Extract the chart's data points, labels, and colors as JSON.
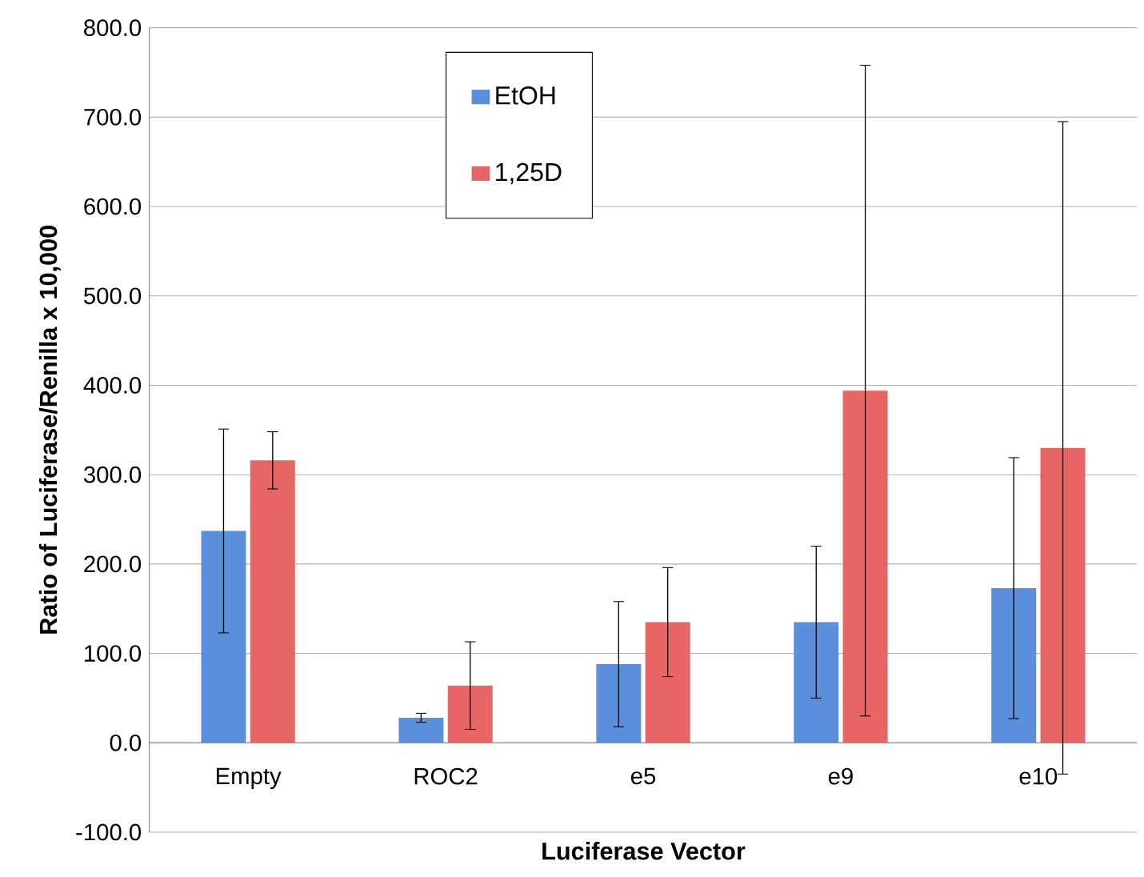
{
  "chart_data": {
    "type": "bar",
    "xlabel": "Luciferase Vector",
    "ylabel": "Ratio of Luciferase/Renilla x 10,000",
    "categories": [
      "Empty",
      "ROC2",
      "e5",
      "e9",
      "e10"
    ],
    "series": [
      {
        "name": "EtOH",
        "color": "#5b8fdb",
        "values": [
          237,
          28,
          88,
          135,
          173
        ],
        "errors": [
          114,
          5,
          70,
          85,
          146
        ]
      },
      {
        "name": "1,25D",
        "color": "#e86565",
        "values": [
          316,
          64,
          135,
          394,
          330
        ],
        "errors": [
          32,
          49,
          61,
          364,
          365
        ]
      }
    ],
    "ylim": [
      -100,
      800
    ],
    "yticks": [
      {
        "value": -100,
        "label": "-100.0"
      },
      {
        "value": 0,
        "label": "0.0"
      },
      {
        "value": 100,
        "label": "100.0"
      },
      {
        "value": 200,
        "label": "200.0"
      },
      {
        "value": 300,
        "label": "300.0"
      },
      {
        "value": 400,
        "label": "400.0"
      },
      {
        "value": 500,
        "label": "500.0"
      },
      {
        "value": 600,
        "label": "600.0"
      },
      {
        "value": 700,
        "label": "700.0"
      },
      {
        "value": 800,
        "label": "800.0"
      }
    ],
    "grid": "y",
    "legend": "top"
  }
}
